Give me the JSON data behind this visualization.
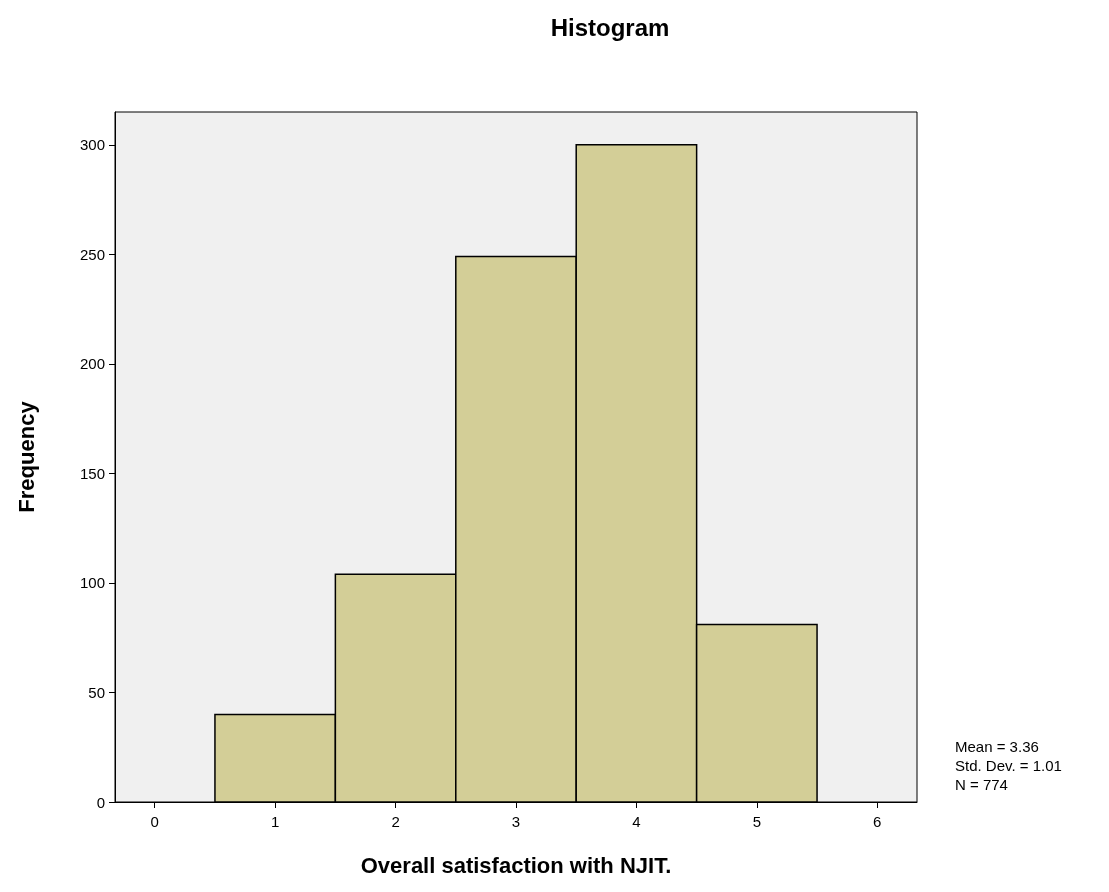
{
  "chart_data": {
    "type": "histogram",
    "title": "Histogram",
    "xlabel": "Overall satisfaction with NJIT.",
    "ylabel": "Frequency",
    "bins": [
      0.5,
      1.5,
      2.5,
      3.5,
      4.5,
      5.5
    ],
    "values": [
      40,
      104,
      249,
      300,
      81
    ],
    "color": "#d3ce97",
    "xlim": [
      -0.33,
      6.33
    ],
    "xticks": [
      0,
      1,
      2,
      3,
      4,
      5,
      6
    ],
    "ylim": [
      0,
      315
    ],
    "yticks": [
      0,
      50,
      100,
      150,
      200,
      250,
      300
    ],
    "grid": false,
    "annotations": [
      "Mean = 3.36",
      "Std. Dev. = 1.01",
      "N = 774"
    ]
  }
}
